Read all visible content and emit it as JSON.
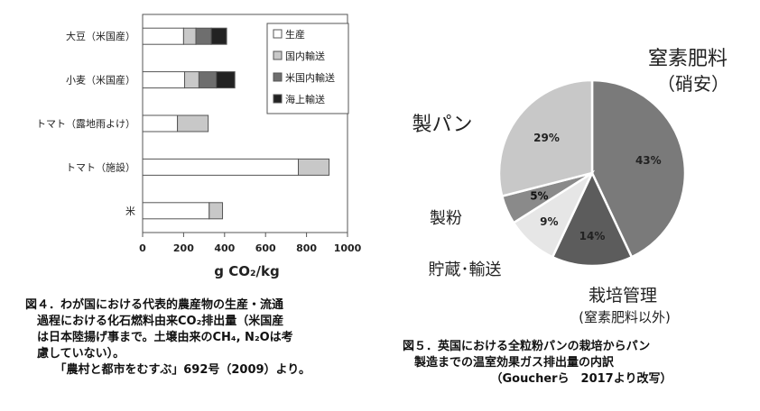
{
  "chart_data": [
    {
      "type": "bar",
      "stacked": true,
      "orientation": "horizontal",
      "categories": [
        "大豆（米国産）",
        "小麦（米国産）",
        "トマト（露地雨よけ）",
        "トマト（施設）",
        "米"
      ],
      "series": [
        {
          "name": "生産",
          "values": [
            200,
            205,
            170,
            760,
            325
          ],
          "color": "#ffffff"
        },
        {
          "name": "国内輸送",
          "values": [
            60,
            70,
            150,
            150,
            65
          ],
          "color": "#c8c8c8"
        },
        {
          "name": "米国内輸送",
          "values": [
            75,
            85,
            0,
            0,
            0
          ],
          "color": "#6e6e6e"
        },
        {
          "name": "海上輸送",
          "values": [
            75,
            90,
            0,
            0,
            0
          ],
          "color": "#222222"
        }
      ],
      "xlim": [
        0,
        1000
      ],
      "xticks": [
        "0",
        "200",
        "400",
        "600",
        "800",
        "1000"
      ],
      "xlabel": "g CO₂/kg",
      "ylabel": "",
      "grid": false,
      "legend_position": "top-right"
    },
    {
      "type": "pie",
      "categories": [
        "窒素肥料（硝安）",
        "栽培管理（窒素肥料以外）",
        "貯蔵・輸送",
        "製粉",
        "製パン"
      ],
      "values": [
        43,
        14,
        9,
        5,
        29
      ],
      "value_labels": [
        "43%",
        "14%",
        "9%",
        "5%",
        "29%"
      ],
      "colors": [
        "#7a7a7a",
        "#5c5c5c",
        "#e6e6e6",
        "#8a8a8a",
        "#c8c8c8"
      ],
      "outer_labels": [
        {
          "lines": [
            "窒素肥料",
            "（硝安）"
          ]
        },
        {
          "lines": [
            "栽培管理",
            "(窒素肥料以外)"
          ]
        },
        {
          "lines": [
            "貯蔵･輸送"
          ]
        },
        {
          "lines": [
            "製粉"
          ]
        },
        {
          "lines": [
            "製パン"
          ]
        }
      ]
    }
  ],
  "captions": {
    "left": [
      "図４．わが国における代表的農産物の生産・流通",
      "　過程における化石燃料由来CO₂排出量（米国産",
      "　は日本陸揚げ事まで。土壌由来のCH₄, N₂Oは考",
      "　慮していない）。",
      "　　　「農村と都市をむすぶ」692号（2009）より。"
    ],
    "right": [
      "図５．英国における全粒粉パンの栽培からパン",
      "　製造までの温室効果ガス排出量の内訳",
      "　　　　　　　　（Goucherら　2017より改写）"
    ]
  }
}
